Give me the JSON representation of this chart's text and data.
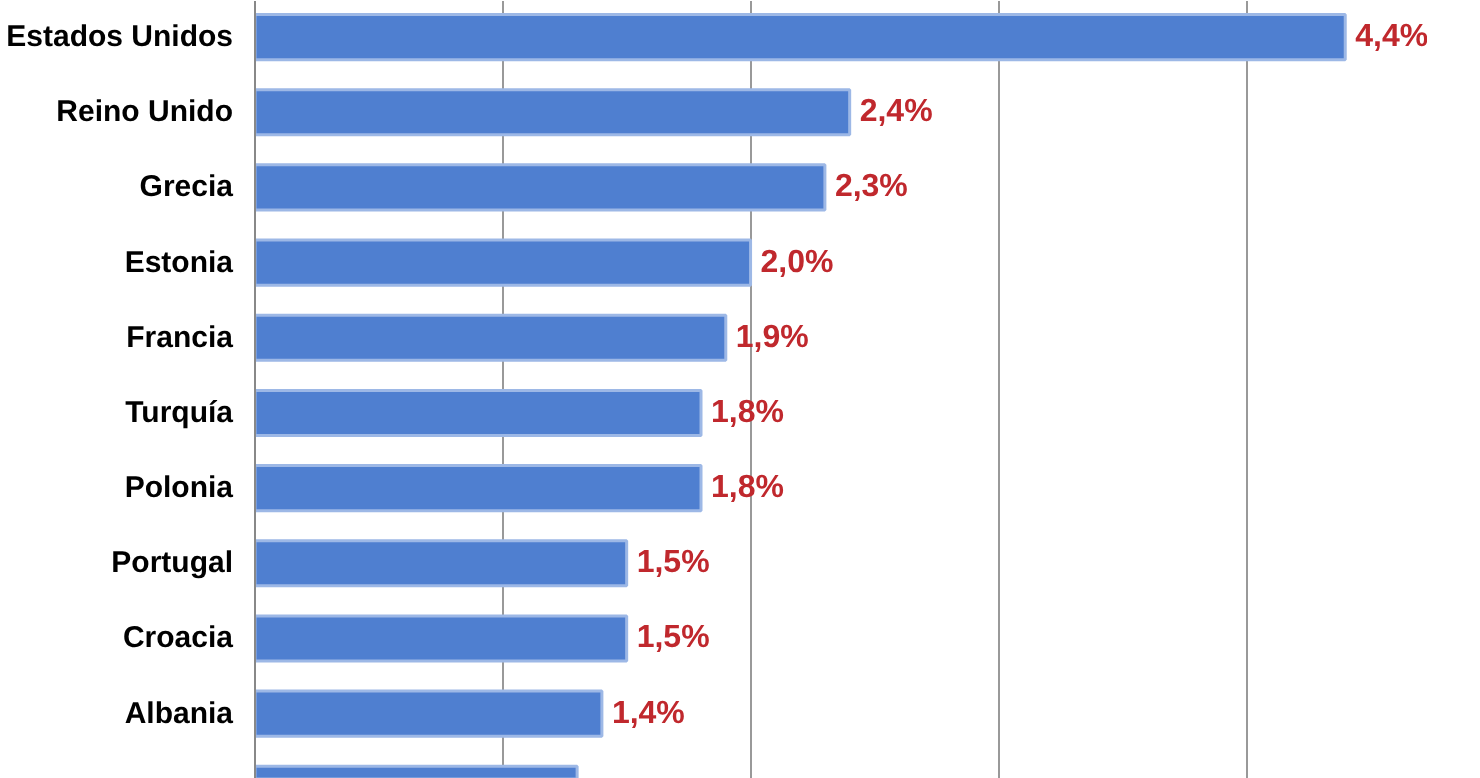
{
  "chart_data": {
    "type": "bar",
    "orientation": "horizontal",
    "categories": [
      "Estados Unidos",
      "Reino Unido",
      "Grecia",
      "Estonia",
      "Francia",
      "Turquía",
      "Polonia",
      "Portugal",
      "Croacia",
      "Albania",
      null
    ],
    "values": [
      4.4,
      2.4,
      2.3,
      2.0,
      1.9,
      1.8,
      1.8,
      1.5,
      1.5,
      1.4,
      1.3
    ],
    "value_labels": [
      "4,4%",
      "2,4%",
      "2,3%",
      "2,0%",
      "1,9%",
      "1,8%",
      "1,8%",
      "1,5%",
      "1,5%",
      "1,4%",
      null
    ],
    "color": "#4f7fd0",
    "grid": "x",
    "tick_labels": "y"
  }
}
